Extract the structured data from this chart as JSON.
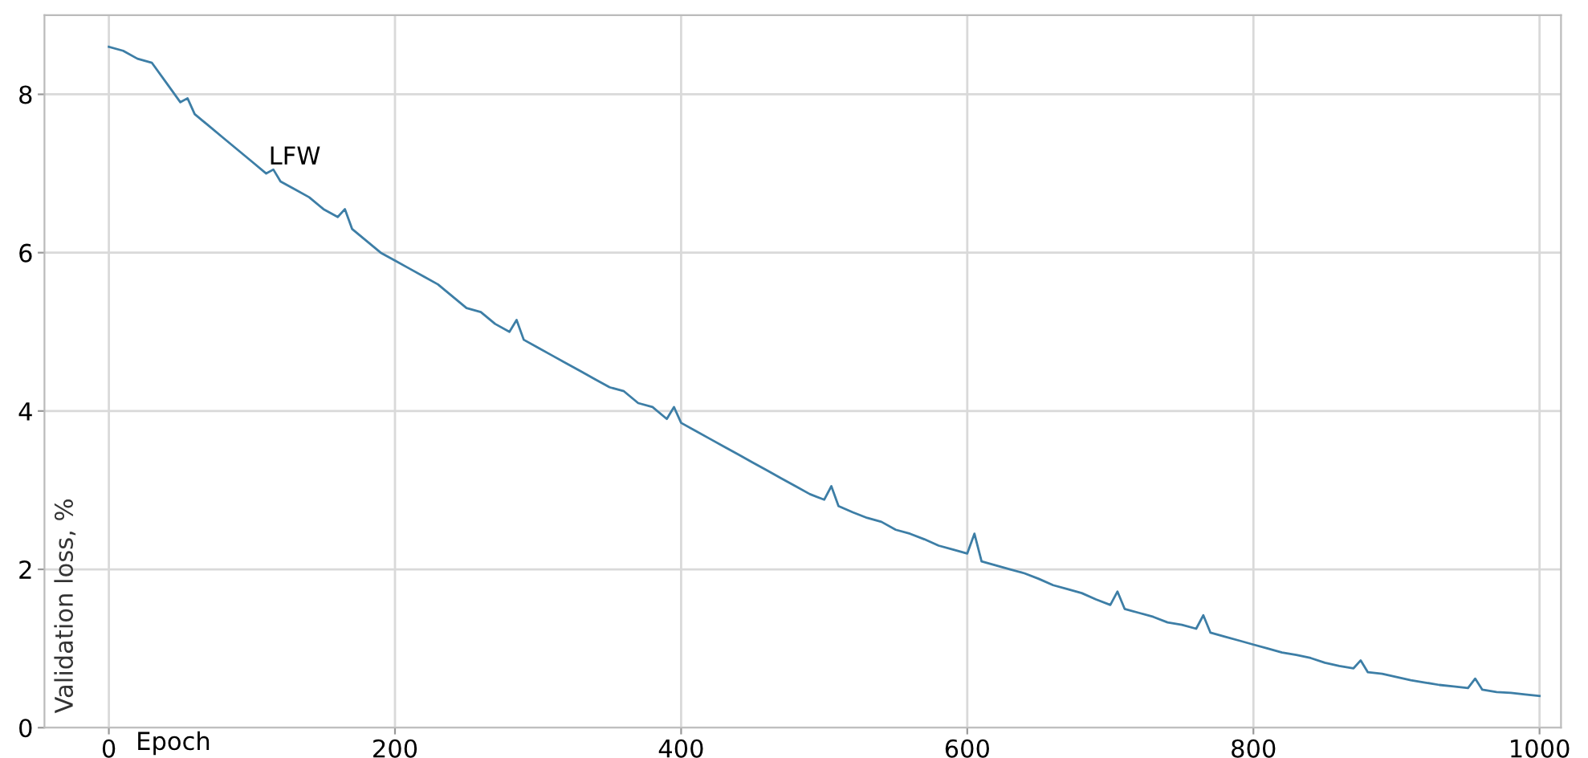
{
  "chart_data": {
    "type": "line",
    "xlabel": "Epoch",
    "ylabel": "Validation loss, %",
    "annotations": [
      "LFW"
    ],
    "xlim": [
      -45,
      1015
    ],
    "xticks": [
      0,
      200,
      400,
      600,
      800,
      1000
    ],
    "ylim": [
      0,
      9
    ],
    "yticks": [
      0,
      2,
      4,
      6,
      8
    ],
    "grid": true,
    "marker": "none",
    "line_style": "solid",
    "series": [
      {
        "color": "#3d7ea6",
        "x": [
          0,
          10,
          20,
          30,
          40,
          50,
          55,
          60,
          70,
          80,
          90,
          100,
          110,
          115,
          120,
          130,
          140,
          150,
          160,
          165,
          170,
          180,
          190,
          200,
          210,
          220,
          230,
          240,
          250,
          260,
          270,
          280,
          285,
          290,
          300,
          310,
          320,
          330,
          340,
          350,
          360,
          370,
          380,
          390,
          395,
          400,
          410,
          420,
          430,
          440,
          450,
          460,
          470,
          480,
          490,
          500,
          505,
          510,
          520,
          530,
          540,
          550,
          560,
          570,
          580,
          590,
          600,
          605,
          610,
          620,
          630,
          640,
          650,
          660,
          670,
          680,
          690,
          700,
          705,
          710,
          720,
          730,
          740,
          750,
          760,
          765,
          770,
          780,
          790,
          800,
          810,
          820,
          830,
          840,
          850,
          860,
          870,
          875,
          880,
          890,
          900,
          910,
          920,
          930,
          940,
          950,
          955,
          960,
          970,
          980,
          990,
          1000
        ],
        "values": [
          8.6,
          8.55,
          8.45,
          8.4,
          8.15,
          7.9,
          7.95,
          7.75,
          7.6,
          7.45,
          7.3,
          7.15,
          7.0,
          7.05,
          6.9,
          6.8,
          6.7,
          6.55,
          6.45,
          6.55,
          6.3,
          6.15,
          6.0,
          5.9,
          5.8,
          5.7,
          5.6,
          5.45,
          5.3,
          5.25,
          5.1,
          5.0,
          5.15,
          4.9,
          4.8,
          4.7,
          4.6,
          4.5,
          4.4,
          4.3,
          4.25,
          4.1,
          4.05,
          3.9,
          4.05,
          3.85,
          3.75,
          3.65,
          3.55,
          3.45,
          3.35,
          3.25,
          3.15,
          3.05,
          2.95,
          2.88,
          3.05,
          2.8,
          2.72,
          2.65,
          2.6,
          2.5,
          2.45,
          2.38,
          2.3,
          2.25,
          2.2,
          2.45,
          2.1,
          2.05,
          2.0,
          1.95,
          1.88,
          1.8,
          1.75,
          1.7,
          1.62,
          1.55,
          1.72,
          1.5,
          1.45,
          1.4,
          1.33,
          1.3,
          1.25,
          1.42,
          1.2,
          1.15,
          1.1,
          1.05,
          1.0,
          0.95,
          0.92,
          0.88,
          0.82,
          0.78,
          0.75,
          0.85,
          0.7,
          0.68,
          0.64,
          0.6,
          0.57,
          0.54,
          0.52,
          0.5,
          0.62,
          0.48,
          0.45,
          0.44,
          0.42,
          0.4
        ]
      }
    ]
  }
}
